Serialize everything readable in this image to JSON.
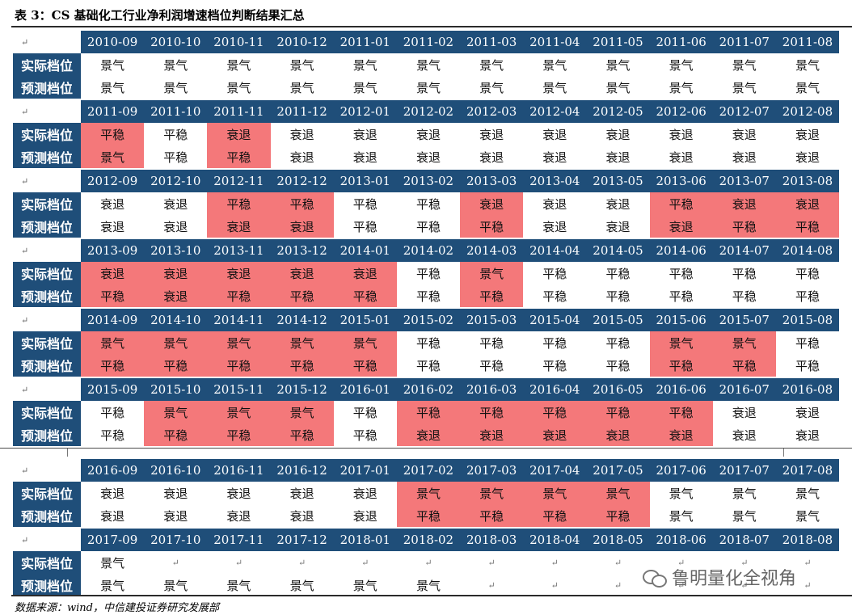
{
  "title": "表 3：CS 基础化工行业净利润增速档位判断结果汇总",
  "row_labels": {
    "actual": "实际档位",
    "predicted": "预测档位"
  },
  "empty_mark": "↵",
  "blocks": [
    {
      "months": [
        "2010-09",
        "2010-10",
        "2010-11",
        "2010-12",
        "2011-01",
        "2011-02",
        "2011-03",
        "2011-04",
        "2011-05",
        "2011-06",
        "2011-07",
        "2011-08"
      ],
      "actual": [
        "景气",
        "景气",
        "景气",
        "景气",
        "景气",
        "景气",
        "景气",
        "景气",
        "景气",
        "景气",
        "景气",
        "景气"
      ],
      "predicted": [
        "景气",
        "景气",
        "景气",
        "景气",
        "景气",
        "景气",
        "景气",
        "景气",
        "景气",
        "景气",
        "景气",
        "景气"
      ],
      "highlight": [
        0,
        0,
        0,
        0,
        0,
        0,
        0,
        0,
        0,
        0,
        0,
        0
      ]
    },
    {
      "months": [
        "2011-09",
        "2011-10",
        "2011-11",
        "2011-12",
        "2012-01",
        "2012-02",
        "2012-03",
        "2012-04",
        "2012-05",
        "2012-06",
        "2012-07",
        "2012-08"
      ],
      "actual": [
        "平稳",
        "平稳",
        "衰退",
        "衰退",
        "衰退",
        "衰退",
        "衰退",
        "衰退",
        "衰退",
        "衰退",
        "衰退",
        "衰退"
      ],
      "predicted": [
        "景气",
        "平稳",
        "平稳",
        "衰退",
        "衰退",
        "衰退",
        "衰退",
        "衰退",
        "衰退",
        "衰退",
        "衰退",
        "衰退"
      ],
      "highlight": [
        1,
        0,
        1,
        0,
        0,
        0,
        0,
        0,
        0,
        0,
        0,
        0
      ]
    },
    {
      "months": [
        "2012-09",
        "2012-10",
        "2012-11",
        "2012-12",
        "2013-01",
        "2013-02",
        "2013-03",
        "2013-04",
        "2013-05",
        "2013-06",
        "2013-07",
        "2013-08"
      ],
      "actual": [
        "衰退",
        "衰退",
        "平稳",
        "平稳",
        "平稳",
        "平稳",
        "衰退",
        "衰退",
        "衰退",
        "平稳",
        "衰退",
        "衰退"
      ],
      "predicted": [
        "衰退",
        "衰退",
        "衰退",
        "衰退",
        "平稳",
        "平稳",
        "平稳",
        "衰退",
        "衰退",
        "衰退",
        "平稳",
        "平稳"
      ],
      "highlight": [
        0,
        0,
        1,
        1,
        0,
        0,
        1,
        0,
        0,
        1,
        1,
        1
      ]
    },
    {
      "months": [
        "2013-09",
        "2013-10",
        "2013-11",
        "2013-12",
        "2014-01",
        "2014-02",
        "2014-03",
        "2014-04",
        "2014-05",
        "2014-06",
        "2014-07",
        "2014-08"
      ],
      "actual": [
        "衰退",
        "衰退",
        "衰退",
        "衰退",
        "衰退",
        "平稳",
        "景气",
        "平稳",
        "平稳",
        "平稳",
        "平稳",
        "平稳"
      ],
      "predicted": [
        "平稳",
        "衰退",
        "平稳",
        "平稳",
        "平稳",
        "平稳",
        "平稳",
        "平稳",
        "平稳",
        "平稳",
        "平稳",
        "平稳"
      ],
      "highlight": [
        1,
        1,
        1,
        1,
        1,
        0,
        1,
        0,
        0,
        0,
        0,
        0
      ]
    },
    {
      "months": [
        "2014-09",
        "2014-10",
        "2014-11",
        "2014-12",
        "2015-01",
        "2015-02",
        "2015-03",
        "2015-04",
        "2015-05",
        "2015-06",
        "2015-07",
        "2015-08"
      ],
      "actual": [
        "景气",
        "景气",
        "景气",
        "景气",
        "景气",
        "平稳",
        "平稳",
        "平稳",
        "平稳",
        "景气",
        "景气",
        "平稳"
      ],
      "predicted": [
        "平稳",
        "平稳",
        "平稳",
        "平稳",
        "平稳",
        "平稳",
        "平稳",
        "平稳",
        "平稳",
        "平稳",
        "平稳",
        "平稳"
      ],
      "highlight": [
        1,
        1,
        1,
        1,
        1,
        0,
        0,
        0,
        0,
        1,
        1,
        0
      ]
    },
    {
      "months": [
        "2015-09",
        "2015-10",
        "2015-11",
        "2015-12",
        "2016-01",
        "2016-02",
        "2016-03",
        "2016-04",
        "2016-05",
        "2016-06",
        "2016-07",
        "2016-08"
      ],
      "actual": [
        "平稳",
        "景气",
        "景气",
        "景气",
        "平稳",
        "平稳",
        "平稳",
        "平稳",
        "平稳",
        "平稳",
        "衰退",
        "衰退"
      ],
      "predicted": [
        "平稳",
        "平稳",
        "平稳",
        "平稳",
        "平稳",
        "衰退",
        "衰退",
        "衰退",
        "衰退",
        "衰退",
        "衰退",
        "衰退"
      ],
      "highlight": [
        0,
        1,
        1,
        1,
        0,
        1,
        1,
        1,
        1,
        1,
        0,
        0
      ]
    },
    {
      "months": [
        "2016-09",
        "2016-10",
        "2016-11",
        "2016-12",
        "2017-01",
        "2017-02",
        "2017-03",
        "2017-04",
        "2017-05",
        "2017-06",
        "2017-07",
        "2017-08"
      ],
      "actual": [
        "衰退",
        "衰退",
        "衰退",
        "衰退",
        "衰退",
        "景气",
        "景气",
        "景气",
        "景气",
        "景气",
        "景气",
        "景气"
      ],
      "predicted": [
        "衰退",
        "衰退",
        "衰退",
        "衰退",
        "衰退",
        "平稳",
        "平稳",
        "平稳",
        "平稳",
        "景气",
        "景气",
        "景气"
      ],
      "highlight": [
        0,
        0,
        0,
        0,
        0,
        1,
        1,
        1,
        1,
        0,
        0,
        0
      ]
    },
    {
      "months": [
        "2017-09",
        "2017-10",
        "2017-11",
        "2017-12",
        "2018-01",
        "2018-02",
        "2018-03",
        "2018-04",
        "2018-05",
        "2018-06",
        "2018-07",
        "2018-08"
      ],
      "actual": [
        "景气",
        "",
        "",
        "",
        "",
        "",
        "",
        "",
        "",
        "",
        "",
        ""
      ],
      "predicted": [
        "景气",
        "景气",
        "景气",
        "景气",
        "景气",
        "景气",
        "",
        "",
        "",
        "",
        "",
        ""
      ],
      "highlight": [
        0,
        0,
        0,
        0,
        0,
        0,
        0,
        0,
        0,
        0,
        0,
        0
      ]
    }
  ],
  "source_note": "数据来源：wind，中信建投证券研究发展部",
  "watermark": "鲁明量化全视角",
  "colors": {
    "header": "#1f4e79",
    "highlight": "#f4787a"
  }
}
